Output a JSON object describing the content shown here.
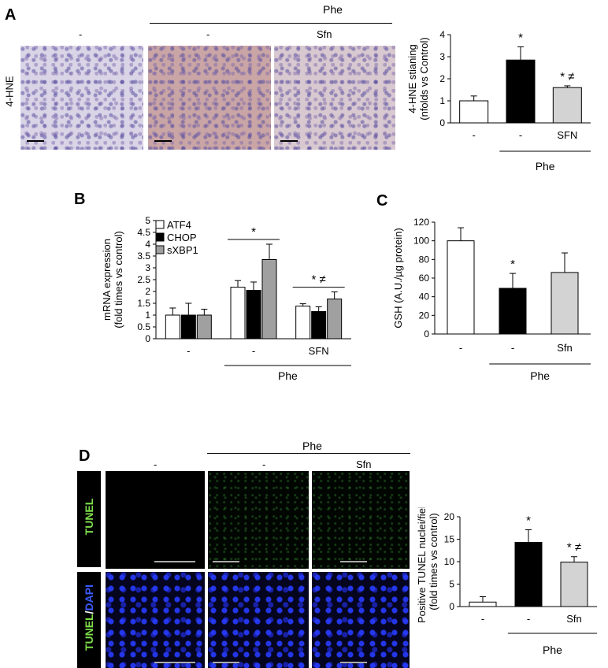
{
  "panels": {
    "A": {
      "letter": "A",
      "group_label": "Phe",
      "col_labels": [
        "-",
        "-",
        "Sfn"
      ],
      "row_label": "4-HNE"
    },
    "B": {
      "letter": "B"
    },
    "C": {
      "letter": "C"
    },
    "D": {
      "letter": "D",
      "group_label": "Phe",
      "col_labels": [
        "-",
        "-",
        "Sfn"
      ],
      "row_label_tunel": "TUNEL",
      "row_label_tunel2": "TUNEL",
      "row_label_slash": "/",
      "row_label_dapi": "DAPI"
    }
  },
  "chart_data": [
    {
      "id": "A",
      "type": "bar",
      "ylabel": "4-HNE staining (nfolds vs Control)",
      "ylabel_lines": [
        "4-HNE stianing",
        "(nfolds vs Control)"
      ],
      "ylim": [
        0,
        4
      ],
      "yticks": [
        0,
        1,
        2,
        3,
        4
      ],
      "categories": [
        "-",
        "-",
        "SFN"
      ],
      "group_label": "Phe",
      "values": [
        1.0,
        2.85,
        1.6
      ],
      "errors": [
        0.22,
        0.6,
        0.08
      ],
      "colors": [
        "#ffffff",
        "#000000",
        "#d3d3d3"
      ],
      "annotations": [
        "",
        "*",
        "* ≠"
      ]
    },
    {
      "id": "B",
      "type": "bar",
      "ylabel_lines": [
        "mRNA expression",
        "(fold times vs control)"
      ],
      "ylim": [
        0,
        5
      ],
      "yticks": [
        0,
        0.5,
        1,
        1.5,
        2,
        2.5,
        3,
        3.5,
        4,
        4.5,
        5
      ],
      "categories": [
        "-",
        "-",
        "SFN"
      ],
      "group_label": "Phe",
      "legend_position": "top-left",
      "series": [
        {
          "name": "ATF4",
          "color": "#ffffff",
          "values": [
            1.0,
            2.18,
            1.38
          ],
          "errors": [
            0.3,
            0.28,
            0.1
          ]
        },
        {
          "name": "CHOP",
          "color": "#000000",
          "values": [
            1.0,
            2.05,
            1.15
          ],
          "errors": [
            0.5,
            0.35,
            0.2
          ]
        },
        {
          "name": "sXBP1",
          "color": "#a0a0a0",
          "values": [
            1.0,
            3.35,
            1.68
          ],
          "errors": [
            0.25,
            0.65,
            0.3
          ]
        }
      ],
      "annotations": [
        "",
        "*",
        "* ≠"
      ]
    },
    {
      "id": "C",
      "type": "bar",
      "ylabel": "GSH (A.U./µg protein)",
      "ylim": [
        0,
        120
      ],
      "yticks": [
        0,
        20,
        40,
        60,
        80,
        100,
        120
      ],
      "categories": [
        "-",
        "-",
        "Sfn"
      ],
      "group_label": "Phe",
      "values": [
        100,
        49,
        66
      ],
      "errors": [
        14,
        16,
        21
      ],
      "colors": [
        "#ffffff",
        "#000000",
        "#d3d3d3"
      ],
      "annotations": [
        "",
        "*",
        ""
      ]
    },
    {
      "id": "D",
      "type": "bar",
      "ylabel_lines": [
        "Positive TUNEL nuclei/field",
        "(fold times vs control)"
      ],
      "ylim": [
        0,
        20
      ],
      "yticks": [
        0,
        5,
        10,
        15,
        20
      ],
      "categories": [
        "-",
        "-",
        "Sfn"
      ],
      "group_label": "Phe",
      "values": [
        1.0,
        14.3,
        9.9
      ],
      "errors": [
        1.2,
        2.8,
        1.2
      ],
      "colors": [
        "#ffffff",
        "#000000",
        "#d3d3d3"
      ],
      "annotations": [
        "",
        "*",
        "* ≠"
      ]
    }
  ]
}
